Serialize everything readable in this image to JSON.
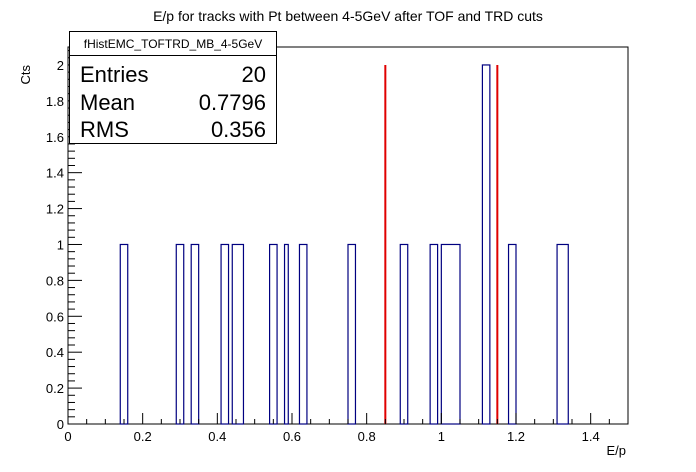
{
  "chart_data": {
    "type": "bar",
    "title": "E/p for tracks with Pt between 4-5GeV after TOF and TRD cuts",
    "xlabel": "E/p",
    "ylabel": "Cts",
    "xlim": [
      0,
      1.5
    ],
    "ylim": [
      0,
      2.1
    ],
    "x_ticks": [
      0,
      0.2,
      0.4,
      0.6,
      0.8,
      1,
      1.2,
      1.4
    ],
    "y_ticks": [
      0,
      0.2,
      0.4,
      0.6,
      0.8,
      1,
      1.2,
      1.4,
      1.6,
      1.8,
      2
    ],
    "bin_width": 0.02,
    "bins": [
      {
        "x0": 0.14,
        "x1": 0.16,
        "count": 1
      },
      {
        "x0": 0.29,
        "x1": 0.31,
        "count": 1
      },
      {
        "x0": 0.33,
        "x1": 0.35,
        "count": 1
      },
      {
        "x0": 0.41,
        "x1": 0.43,
        "count": 1
      },
      {
        "x0": 0.44,
        "x1": 0.47,
        "count": 1
      },
      {
        "x0": 0.54,
        "x1": 0.56,
        "count": 1
      },
      {
        "x0": 0.58,
        "x1": 0.59,
        "count": 1
      },
      {
        "x0": 0.62,
        "x1": 0.64,
        "count": 1
      },
      {
        "x0": 0.75,
        "x1": 0.77,
        "count": 1
      },
      {
        "x0": 0.89,
        "x1": 0.91,
        "count": 1
      },
      {
        "x0": 0.97,
        "x1": 0.99,
        "count": 1
      },
      {
        "x0": 1.0,
        "x1": 1.05,
        "count": 1
      },
      {
        "x0": 1.11,
        "x1": 1.13,
        "count": 2
      },
      {
        "x0": 1.18,
        "x1": 1.2,
        "count": 1
      },
      {
        "x0": 1.31,
        "x1": 1.34,
        "count": 1
      }
    ],
    "cut_lines": [
      0.85,
      1.15
    ],
    "colors": {
      "histogram": "#000080",
      "cuts": "#e00000",
      "frame": "#000000"
    }
  },
  "stats": {
    "name": "fHistEMC_TOFTRD_MB_4-5GeV",
    "rows": [
      {
        "label": "Entries",
        "value": "20"
      },
      {
        "label": "Mean",
        "value": "0.7796"
      },
      {
        "label": "RMS",
        "value": "0.356"
      }
    ]
  }
}
